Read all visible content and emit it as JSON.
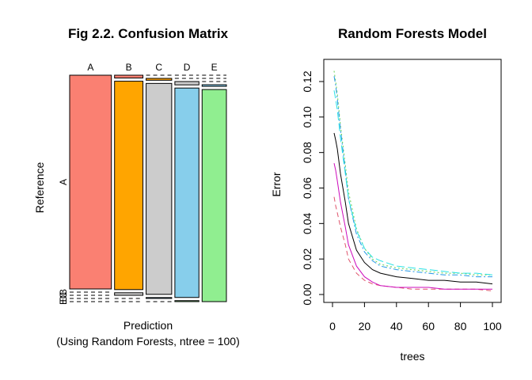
{
  "chart_data": [
    {
      "type": "mosaic",
      "title": "Fig 2.2. Confusion Matrix",
      "xlabel": "Prediction",
      "xlabel_sub": "(Using Random Forests, ntree = 100)",
      "ylabel": "Reference",
      "prediction_levels": [
        "A",
        "B",
        "C",
        "D",
        "E"
      ],
      "reference_levels": [
        "A",
        "B",
        "C",
        "D",
        "E"
      ],
      "reference_tick_labels": [
        "A",
        "B",
        "C",
        "D",
        "E"
      ],
      "colors": [
        "#fa8072",
        "#ffa500",
        "#cccccc",
        "#87ceeb",
        "#90ee90"
      ],
      "counts": [
        [
          2230,
          20,
          0,
          0,
          0
        ],
        [
          0,
          1480,
          12,
          0,
          0
        ],
        [
          0,
          18,
          1350,
          20,
          0
        ],
        [
          0,
          0,
          6,
          1260,
          10
        ],
        [
          0,
          0,
          0,
          6,
          1290
        ]
      ]
    },
    {
      "type": "line",
      "title": "Random Forests Model",
      "xlabel": "trees",
      "ylabel": "Error",
      "xlim": [
        0,
        100
      ],
      "ylim": [
        0,
        0.13
      ],
      "xticks": [
        0,
        20,
        40,
        60,
        80,
        100
      ],
      "yticks": [
        0.0,
        0.02,
        0.04,
        0.06,
        0.08,
        0.1,
        0.12
      ],
      "x": [
        1,
        2,
        3,
        5,
        8,
        10,
        15,
        20,
        25,
        30,
        40,
        50,
        60,
        70,
        80,
        90,
        100
      ],
      "series": [
        {
          "color": "#000000",
          "dash": "solid",
          "values": [
            0.091,
            0.087,
            0.082,
            0.068,
            0.052,
            0.04,
            0.025,
            0.018,
            0.014,
            0.012,
            0.01,
            0.009,
            0.008,
            0.008,
            0.007,
            0.007,
            0.006
          ]
        },
        {
          "color": "#df536b",
          "dash": "dashed",
          "values": [
            0.055,
            0.05,
            0.046,
            0.038,
            0.028,
            0.02,
            0.012,
            0.008,
            0.006,
            0.005,
            0.004,
            0.003,
            0.003,
            0.003,
            0.003,
            0.003,
            0.002
          ]
        },
        {
          "color": "#61d04f",
          "dash": "dotted",
          "values": [
            0.126,
            0.12,
            0.113,
            0.095,
            0.073,
            0.058,
            0.037,
            0.026,
            0.02,
            0.017,
            0.015,
            0.014,
            0.013,
            0.012,
            0.012,
            0.011,
            0.011
          ]
        },
        {
          "color": "#2297e6",
          "dash": "dashdot",
          "values": [
            0.123,
            0.118,
            0.11,
            0.093,
            0.07,
            0.054,
            0.034,
            0.024,
            0.019,
            0.016,
            0.014,
            0.013,
            0.012,
            0.011,
            0.011,
            0.01,
            0.01
          ]
        },
        {
          "color": "#28e2e5",
          "dash": "longdash",
          "values": [
            0.115,
            0.11,
            0.104,
            0.088,
            0.068,
            0.054,
            0.036,
            0.026,
            0.021,
            0.019,
            0.016,
            0.015,
            0.014,
            0.013,
            0.012,
            0.012,
            0.011
          ]
        },
        {
          "color": "#cd0bbc",
          "dash": "solid",
          "values": [
            0.074,
            0.07,
            0.064,
            0.052,
            0.038,
            0.028,
            0.016,
            0.01,
            0.007,
            0.005,
            0.004,
            0.004,
            0.004,
            0.003,
            0.003,
            0.003,
            0.003
          ]
        }
      ]
    }
  ]
}
